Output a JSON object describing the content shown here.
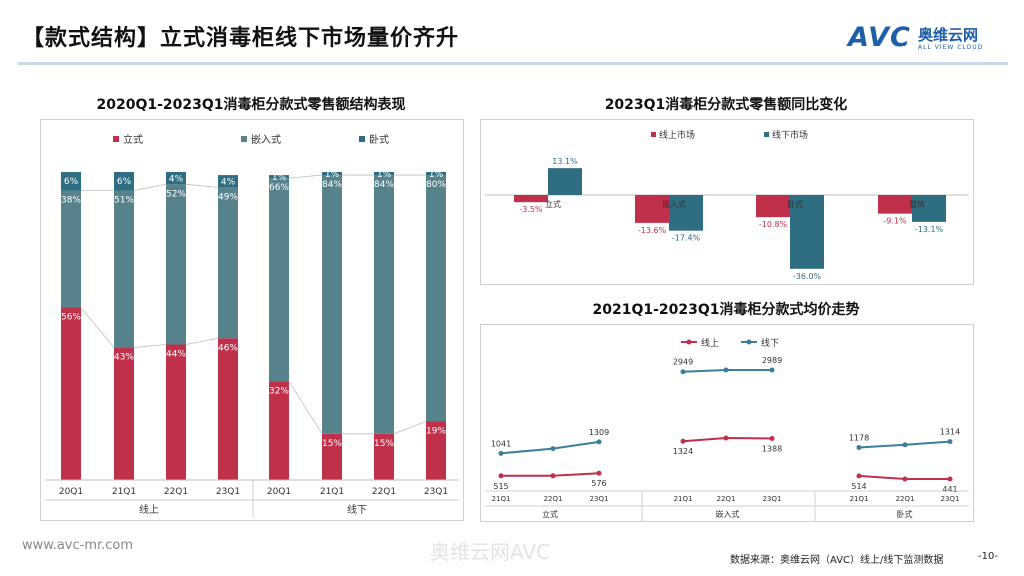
{
  "page": {
    "title": "【款式结构】立式消毒柜线下市场量价齐升",
    "logo": {
      "main": "AVC",
      "cn": "奥维云网",
      "en": "ALL VIEW CLOUD"
    },
    "footer": {
      "url": "www.avc-mr.com",
      "watermark": "奥维云网AVC",
      "source": "数据来源：奥维云网（AVC）线上/线下监测数据",
      "page": "-10-"
    }
  },
  "colors": {
    "red": "#c0304a",
    "teal": "#56828b",
    "teal_dark": "#2f6e82",
    "blue": "#3c7f9a",
    "grid": "#bfbfbf"
  },
  "chart_data": [
    {
      "type": "bar",
      "stacked": true,
      "title": "2020Q1-2023Q1消毒柜分款式零售额结构表现",
      "categories": [
        "20Q1",
        "21Q1",
        "22Q1",
        "23Q1",
        "20Q1",
        "21Q1",
        "22Q1",
        "23Q1"
      ],
      "groups": [
        {
          "label": "线上",
          "count": 4
        },
        {
          "label": "线下",
          "count": 4
        }
      ],
      "series": [
        {
          "name": "立式",
          "color": "#c0304a",
          "values": [
            56,
            43,
            44,
            46,
            32,
            15,
            15,
            19
          ],
          "labels": [
            "56%",
            "43%",
            "44%",
            "46%",
            "32%",
            "15%",
            "15%",
            "19%"
          ]
        },
        {
          "name": "嵌入式",
          "color": "#56828b",
          "values": [
            38,
            51,
            52,
            49,
            66,
            84,
            84,
            80
          ],
          "labels": [
            "38%",
            "51%",
            "52%",
            "49%",
            "66%",
            "84%",
            "84%",
            "80%"
          ]
        },
        {
          "name": "卧式",
          "color": "#2f6e82",
          "values": [
            6,
            6,
            4,
            4,
            1,
            1,
            1,
            1
          ],
          "labels": [
            "6%",
            "6%",
            "4%",
            "4%",
            "1%",
            "1%",
            "1%",
            "1%"
          ]
        }
      ],
      "ylim": [
        0,
        100
      ]
    },
    {
      "type": "bar",
      "title": "2023Q1消毒柜分款式零售额同比变化",
      "categories": [
        "立式",
        "嵌入式",
        "卧式",
        "整体"
      ],
      "series": [
        {
          "name": "线上市场",
          "color": "#c0304a",
          "values": [
            -3.5,
            -13.6,
            -10.8,
            -9.1
          ],
          "labels": [
            "-3.5%",
            "-13.6%",
            "-10.8%",
            "-9.1%"
          ]
        },
        {
          "name": "线下市场",
          "color": "#2f6e82",
          "values": [
            13.1,
            -17.4,
            -36.0,
            -13.1
          ],
          "labels": [
            "13.1%",
            "-17.4%",
            "-36.0%",
            "-13.1%"
          ]
        }
      ],
      "ylim": [
        -40,
        16
      ]
    },
    {
      "type": "line",
      "title": "2021Q1-2023Q1消毒柜分款式均价走势",
      "groups": [
        "立式",
        "嵌入式",
        "卧式"
      ],
      "x": [
        "21Q1",
        "22Q1",
        "23Q1"
      ],
      "series": [
        {
          "name": "线上",
          "color": "#c0304a",
          "values": [
            [
              515,
              515,
              576
            ],
            [
              1324,
              1400,
              1388
            ],
            [
              514,
              441,
              441
            ]
          ],
          "labels": [
            [
              "515",
              "",
              "576"
            ],
            [
              "1324",
              "",
              "1388"
            ],
            [
              "514",
              "",
              "441"
            ]
          ]
        },
        {
          "name": "线下",
          "color": "#3c7f9a",
          "values": [
            [
              1041,
              1150,
              1309
            ],
            [
              2949,
              2990,
              2989
            ],
            [
              1178,
              1240,
              1314
            ]
          ],
          "labels": [
            [
              "1041",
              "",
              "1309"
            ],
            [
              "2949",
              "",
              "2989"
            ],
            [
              "1178",
              "",
              "1314"
            ]
          ]
        }
      ]
    }
  ]
}
